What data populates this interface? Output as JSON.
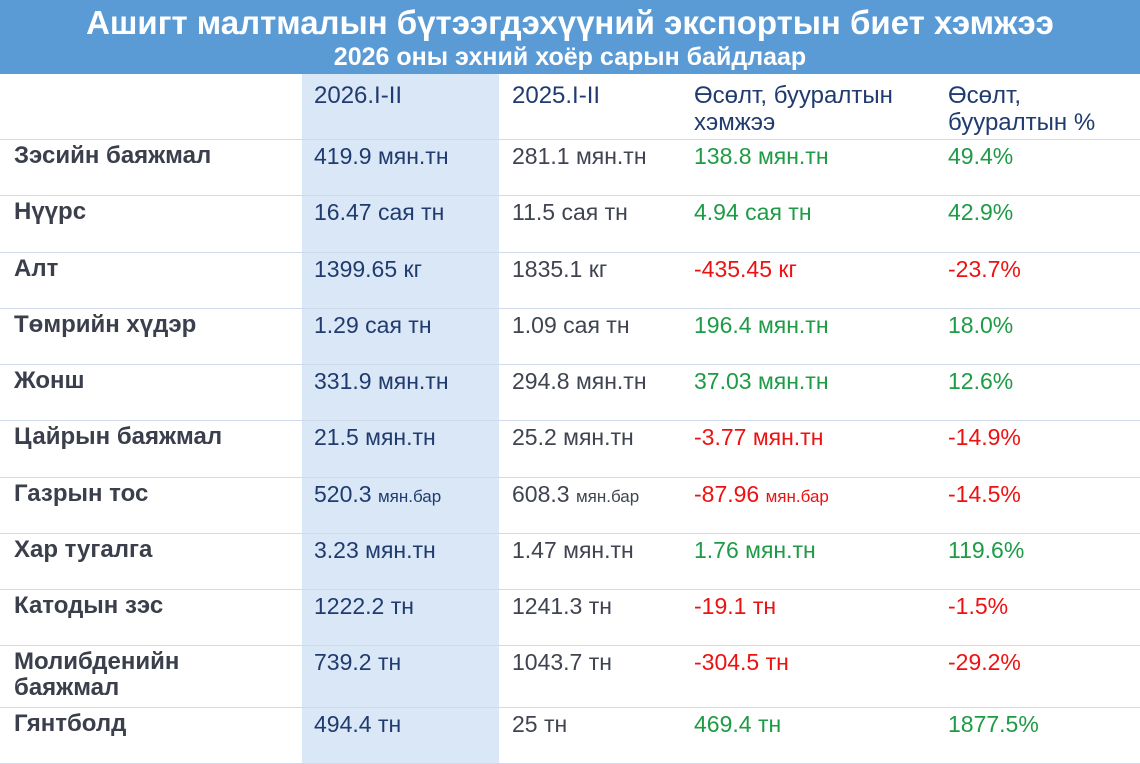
{
  "title": "Ашигт малтмалын бүтээгдэхүүний экспортын биет хэмжээ",
  "subtitle": "2026 оны эхний хоёр сарын байдлаар",
  "colors": {
    "header_bg": "#5b9bd5",
    "highlight_col": "#dae7f6",
    "positive": "#1e9b45",
    "negative": "#ee1111"
  },
  "columns": [
    "",
    "2026.I-II",
    "2025.I-II",
    "Өсөлт, бууралтын\nхэмжээ",
    "Өсөлт,\nбууралтын %"
  ],
  "chart_data": {
    "type": "table",
    "title": "Ашигт малтмалын бүтээгдэхүүний экспортын биет хэмжээ",
    "subtitle": "2026 оны эхний хоёр сарын байдлаар",
    "columns": [
      "",
      "2026.I-II",
      "2025.I-II",
      "Өсөлт, бууралтын хэмжээ",
      "Өсөлт, бууралтын %"
    ],
    "rows": [
      {
        "name": "Зэсийн баяжмал",
        "v2026": "419.9",
        "u2026": "мян.тн",
        "v2025": "281.1",
        "u2025": "мян.тн",
        "change": "138.8",
        "uchange": "мян.тн",
        "pct": "49.4%",
        "sign": "pos",
        "small_unit": false
      },
      {
        "name": "Нүүрс",
        "v2026": "16.47",
        "u2026": "сая тн",
        "v2025": "11.5",
        "u2025": "сая тн",
        "change": "4.94",
        "uchange": "сая тн",
        "pct": "42.9%",
        "sign": "pos",
        "small_unit": false
      },
      {
        "name": "Алт",
        "v2026": "1399.65",
        "u2026": "кг",
        "v2025": "1835.1",
        "u2025": "кг",
        "change": "-435.45",
        "uchange": "кг",
        "pct": "-23.7%",
        "sign": "neg",
        "small_unit": false
      },
      {
        "name": "Төмрийн хүдэр",
        "v2026": "1.29",
        "u2026": "сая тн",
        "v2025": "1.09",
        "u2025": "сая тн",
        "change": "196.4",
        "uchange": "мян.тн",
        "pct": "18.0%",
        "sign": "pos",
        "small_unit": false
      },
      {
        "name": "Жонш",
        "v2026": "331.9",
        "u2026": "мян.тн",
        "v2025": "294.8",
        "u2025": "мян.тн",
        "change": "37.03",
        "uchange": "мян.тн",
        "pct": "12.6%",
        "sign": "pos",
        "small_unit": false
      },
      {
        "name": "Цайрын баяжмал",
        "v2026": "21.5",
        "u2026": "мян.тн",
        "v2025": "25.2",
        "u2025": "мян.тн",
        "change": "-3.77",
        "uchange": "мян.тн",
        "pct": "-14.9%",
        "sign": "neg",
        "small_unit": false
      },
      {
        "name": "Газрын тос",
        "v2026": "520.3",
        "u2026": "мян.бар",
        "v2025": "608.3",
        "u2025": "мян.бар",
        "change": "-87.96",
        "uchange": "мян.бар",
        "pct": "-14.5%",
        "sign": "neg",
        "small_unit": true
      },
      {
        "name": "Хар тугалга",
        "v2026": "3.23",
        "u2026": "мян.тн",
        "v2025": "1.47",
        "u2025": "мян.тн",
        "change": "1.76",
        "uchange": "мян.тн",
        "pct": "119.6%",
        "sign": "pos",
        "small_unit": false
      },
      {
        "name": "Катодын зэс",
        "v2026": "1222.2",
        "u2026": "тн",
        "v2025": "1241.3",
        "u2025": "тн",
        "change": "-19.1",
        "uchange": "тн",
        "pct": "-1.5%",
        "sign": "neg",
        "small_unit": false
      },
      {
        "name": "Молибденийн\nбаяжмал",
        "v2026": "739.2",
        "u2026": "тн",
        "v2025": "1043.7",
        "u2025": "тн",
        "change": "-304.5",
        "uchange": "тн",
        "pct": "-29.2%",
        "sign": "neg",
        "small_unit": false
      },
      {
        "name": "Гянтболд",
        "v2026": "494.4",
        "u2026": "тн",
        "v2025": "25",
        "u2025": "тн",
        "change": "469.4",
        "uchange": "тн",
        "pct": "1877.5%",
        "sign": "pos",
        "small_unit": false
      }
    ]
  }
}
